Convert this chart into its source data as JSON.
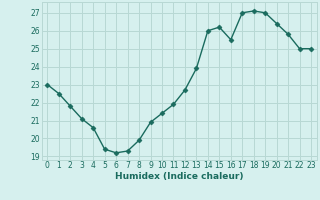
{
  "x": [
    0,
    1,
    2,
    3,
    4,
    5,
    6,
    7,
    8,
    9,
    10,
    11,
    12,
    13,
    14,
    15,
    16,
    17,
    18,
    19,
    20,
    21,
    22,
    23
  ],
  "y": [
    23.0,
    22.5,
    21.8,
    21.1,
    20.6,
    19.4,
    19.2,
    19.3,
    19.9,
    20.9,
    21.4,
    21.9,
    22.7,
    23.9,
    26.0,
    26.2,
    25.5,
    27.0,
    27.1,
    27.0,
    26.4,
    25.8,
    25.0,
    25.0
  ],
  "line_color": "#1a6b5e",
  "marker": "D",
  "marker_size": 2.5,
  "bg_color": "#d6f0ee",
  "grid_color": "#b8d8d4",
  "xlabel": "Humidex (Indice chaleur)",
  "ylim": [
    18.8,
    27.6
  ],
  "yticks": [
    19,
    20,
    21,
    22,
    23,
    24,
    25,
    26,
    27
  ],
  "xticks": [
    0,
    1,
    2,
    3,
    4,
    5,
    6,
    7,
    8,
    9,
    10,
    11,
    12,
    13,
    14,
    15,
    16,
    17,
    18,
    19,
    20,
    21,
    22,
    23
  ],
  "tick_fontsize": 5.5,
  "xlabel_fontsize": 6.5
}
